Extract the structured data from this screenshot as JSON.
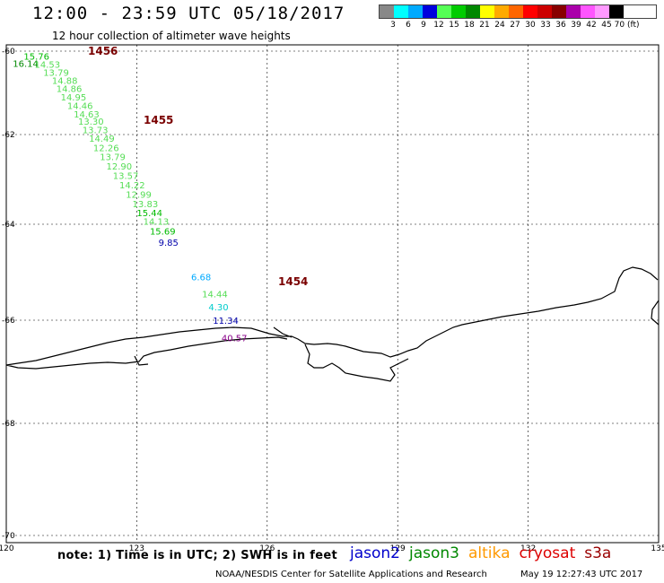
{
  "title": "12:00 - 23:59 UTC 05/18/2017",
  "subtitle": "12 hour collection of altimeter wave heights",
  "scale": {
    "labels": [
      "3",
      "6",
      "9",
      "12",
      "15",
      "18",
      "21",
      "24",
      "27",
      "30",
      "33",
      "36",
      "39",
      "42",
      "45",
      "70 (ft)"
    ],
    "colors": [
      "#888888",
      "#00ffff",
      "#00aaff",
      "#0000dd",
      "#55ff55",
      "#00cc00",
      "#008800",
      "#ffff00",
      "#ffaa00",
      "#ff6600",
      "#ff0000",
      "#cc0000",
      "#880000",
      "#aa00aa",
      "#ff55ff",
      "#ff99ff",
      "#000000"
    ]
  },
  "map": {
    "lon_ticks": [
      "120",
      "123",
      "126",
      "129",
      "132",
      "135"
    ],
    "lat_ticks": [
      "-60",
      "-62",
      "-64",
      "-66",
      "-68",
      "-70"
    ],
    "track_labels": [
      "1456",
      "1455",
      "1454"
    ],
    "track_label_color": "#7a0000",
    "swh": [
      {
        "v": "16.14",
        "lon": 120.15,
        "lat": -59.95,
        "c": "#008800"
      },
      {
        "v": "15.76",
        "lon": 120.4,
        "lat": -60.12,
        "c": "#00bb00"
      },
      {
        "v": "14.53",
        "lon": 120.65,
        "lat": -60.31,
        "c": "#55dd55"
      },
      {
        "v": "13.79",
        "lon": 120.85,
        "lat": -60.5,
        "c": "#55dd55"
      },
      {
        "v": "14.88",
        "lon": 121.05,
        "lat": -60.7,
        "c": "#55dd55"
      },
      {
        "v": "14.86",
        "lon": 121.15,
        "lat": -60.89,
        "c": "#55dd55"
      },
      {
        "v": "14.95",
        "lon": 121.25,
        "lat": -61.1,
        "c": "#55dd55"
      },
      {
        "v": "14.46",
        "lon": 121.4,
        "lat": -61.3,
        "c": "#55dd55"
      },
      {
        "v": "14.63",
        "lon": 121.55,
        "lat": -61.5,
        "c": "#55dd55"
      },
      {
        "v": "13.30",
        "lon": 121.65,
        "lat": -61.68,
        "c": "#55dd55"
      },
      {
        "v": "13.73",
        "lon": 121.75,
        "lat": -61.88,
        "c": "#55dd55"
      },
      {
        "v": "14.49",
        "lon": 121.9,
        "lat": -62.08,
        "c": "#55dd55"
      },
      {
        "v": "12.26",
        "lon": 122.0,
        "lat": -62.29,
        "c": "#55dd55"
      },
      {
        "v": "13.79",
        "lon": 122.15,
        "lat": -62.49,
        "c": "#55dd55"
      },
      {
        "v": "12.90",
        "lon": 122.3,
        "lat": -62.7,
        "c": "#55dd55"
      },
      {
        "v": "13.57",
        "lon": 122.45,
        "lat": -62.91,
        "c": "#55dd55"
      },
      {
        "v": "14.22",
        "lon": 122.6,
        "lat": -63.12,
        "c": "#55dd55"
      },
      {
        "v": "12.99",
        "lon": 122.75,
        "lat": -63.33,
        "c": "#55dd55"
      },
      {
        "v": "13.83",
        "lon": 122.9,
        "lat": -63.54,
        "c": "#55dd55"
      },
      {
        "v": "15.44",
        "lon": 123.0,
        "lat": -63.74,
        "c": "#00bb00"
      },
      {
        "v": "14.13",
        "lon": 123.15,
        "lat": -63.93,
        "c": "#55dd55"
      },
      {
        "v": "15.69",
        "lon": 123.3,
        "lat": -64.14,
        "c": "#00bb00"
      },
      {
        "v": "9.85",
        "lon": 123.5,
        "lat": -64.37,
        "c": "#0000aa"
      },
      {
        "v": "6.68",
        "lon": 124.25,
        "lat": -65.09,
        "c": "#00aaff"
      },
      {
        "v": "14.44",
        "lon": 124.5,
        "lat": -65.45,
        "c": "#55dd55"
      },
      {
        "v": "4.30",
        "lon": 124.65,
        "lat": -65.72,
        "c": "#00cccc"
      },
      {
        "v": "11.34",
        "lon": 124.75,
        "lat": -66.0,
        "c": "#0000aa"
      },
      {
        "v": "40.57",
        "lon": 124.95,
        "lat": -66.34,
        "c": "#880088"
      }
    ]
  },
  "note": "note:  1) Time is in UTC; 2) SWH is in feet",
  "satellites": [
    {
      "name": "jason2",
      "color": "#0000cc"
    },
    {
      "name": "jason3",
      "color": "#008800"
    },
    {
      "name": "altika",
      "color": "#ff9900"
    },
    {
      "name": "cryosat",
      "color": "#dd0000"
    },
    {
      "name": "s3a",
      "color": "#990000"
    }
  ],
  "footer_left": "NOAA/NESDIS Center for Satellite Applications and Research",
  "footer_right": "May 19 12:27:43 UTC 2017"
}
